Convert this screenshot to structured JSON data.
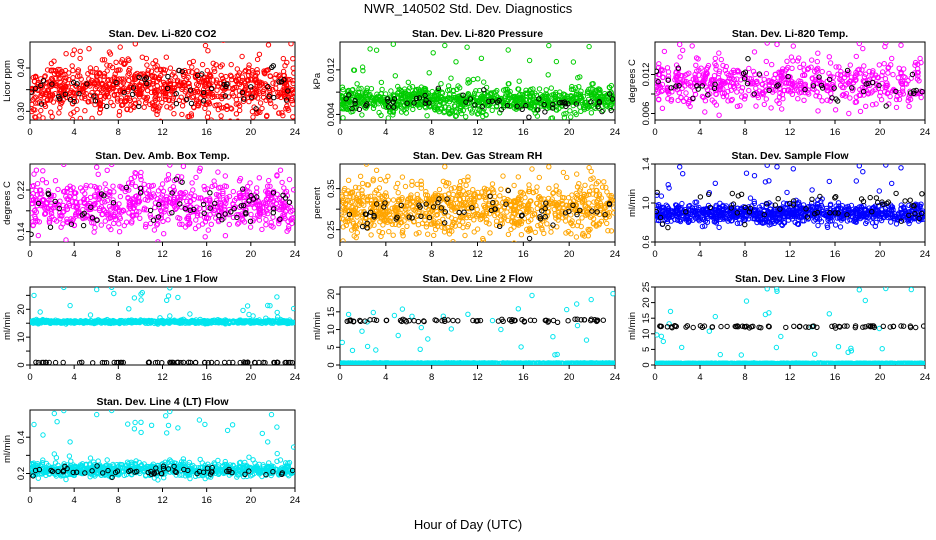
{
  "title": "NWR_140502  Std. Dev. Diagnostics",
  "xlabel": "Hour of Day (UTC)",
  "colors": {
    "red": "#ff0000",
    "green": "#00cc00",
    "magenta": "#ff00ff",
    "orange": "#ffa500",
    "blue": "#0000ff",
    "cyan": "#00e5ee",
    "black": "#000000"
  },
  "chart_data": [
    {
      "type": "scatter",
      "title": "Stan. Dev. Li-820 CO2",
      "ylabel": "Licor ppm",
      "xlim": [
        0,
        24
      ],
      "ylim": [
        0.28,
        0.46
      ],
      "xticks": [
        0,
        4,
        8,
        12,
        16,
        20,
        24
      ],
      "yticks": [
        0.3,
        0.35,
        0.4
      ],
      "ytick_labels": [
        "0.30",
        "",
        "0.40"
      ],
      "series": [
        {
          "color": "#ff0000",
          "mean": 0.35,
          "sd": 0.03,
          "count": 900
        },
        {
          "color": "#000000",
          "mean": 0.35,
          "sd": 0.025,
          "count": 60
        }
      ]
    },
    {
      "type": "scatter",
      "title": "Stan. Dev. Li-820 Pressure",
      "ylabel": "kPa",
      "xlim": [
        0,
        24
      ],
      "ylim": [
        0.003,
        0.017
      ],
      "xticks": [
        0,
        4,
        8,
        12,
        16,
        20,
        24
      ],
      "yticks": [
        0.004,
        0.008,
        0.012
      ],
      "ytick_labels": [
        "0.004",
        "",
        "0.012"
      ],
      "series": [
        {
          "color": "#00cc00",
          "mean": 0.0065,
          "sd": 0.0012,
          "count": 900
        },
        {
          "color": "#000000",
          "mean": 0.0062,
          "sd": 0.001,
          "count": 60
        }
      ]
    },
    {
      "type": "scatter",
      "title": "Stan. Dev. Li-820 Temp.",
      "ylabel": "degrees C",
      "xlim": [
        0,
        24
      ],
      "ylim": [
        0.005,
        0.017
      ],
      "xticks": [
        0,
        4,
        8,
        12,
        16,
        20,
        24
      ],
      "yticks": [
        0.006,
        0.009,
        0.012
      ],
      "ytick_labels": [
        "0.006",
        "",
        "0.012"
      ],
      "series": [
        {
          "color": "#ff00ff",
          "mean": 0.0105,
          "sd": 0.0017,
          "count": 600
        },
        {
          "color": "#000000",
          "mean": 0.0103,
          "sd": 0.0013,
          "count": 50
        }
      ]
    },
    {
      "type": "scatter",
      "title": "Stan. Dev. Amb. Box Temp.",
      "ylabel": "degrees C",
      "xlim": [
        0,
        24
      ],
      "ylim": [
        0.12,
        0.27
      ],
      "xticks": [
        0,
        4,
        8,
        12,
        16,
        20,
        24
      ],
      "yticks": [
        0.14,
        0.18,
        0.22
      ],
      "ytick_labels": [
        "0.14",
        "",
        "0.22"
      ],
      "series": [
        {
          "color": "#ff00ff",
          "mean": 0.19,
          "sd": 0.025,
          "count": 700
        },
        {
          "color": "#000000",
          "mean": 0.185,
          "sd": 0.02,
          "count": 60
        }
      ]
    },
    {
      "type": "scatter",
      "title": "Stan. Dev. Gas Stream RH",
      "ylabel": "percent",
      "xlim": [
        0,
        24
      ],
      "ylim": [
        0.22,
        0.41
      ],
      "xticks": [
        0,
        4,
        8,
        12,
        16,
        20,
        24
      ],
      "yticks": [
        0.25,
        0.3,
        0.35
      ],
      "ytick_labels": [
        "0.25",
        "",
        "0.35"
      ],
      "series": [
        {
          "color": "#ffa500",
          "mean": 0.3,
          "sd": 0.03,
          "count": 900
        },
        {
          "color": "#000000",
          "mean": 0.295,
          "sd": 0.02,
          "count": 60
        }
      ]
    },
    {
      "type": "scatter",
      "title": "Stan. Dev. Sample Flow",
      "ylabel": "ml/min",
      "xlim": [
        0,
        24
      ],
      "ylim": [
        0.6,
        1.4
      ],
      "xticks": [
        0,
        4,
        8,
        12,
        16,
        20,
        24
      ],
      "yticks": [
        0.6,
        1.0,
        1.4
      ],
      "ytick_labels": [
        "0.6",
        "1.0",
        "1.4"
      ],
      "series": [
        {
          "color": "#0000ff",
          "mean": 0.89,
          "sd": 0.05,
          "count": 900
        },
        {
          "color": "#000000",
          "mean": 0.98,
          "sd": 0.09,
          "count": 60
        }
      ]
    },
    {
      "type": "scatter",
      "title": "Stan. Dev. Line 1 Flow",
      "ylabel": "ml/min",
      "xlim": [
        0,
        24
      ],
      "ylim": [
        0,
        28
      ],
      "xticks": [
        0,
        4,
        8,
        12,
        16,
        20,
        24
      ],
      "yticks": [
        0,
        5,
        10,
        15,
        20,
        25
      ],
      "ytick_labels": [
        "0",
        "",
        "10",
        "",
        "20",
        ""
      ],
      "series": [
        {
          "color": "#00e5ee",
          "mean": 15.5,
          "sd": 0.3,
          "count": 700
        },
        {
          "color": "#000000",
          "mean": 0.9,
          "sd": 0.05,
          "count": 70
        }
      ]
    },
    {
      "type": "scatter",
      "title": "Stan. Dev. Line 2 Flow",
      "ylabel": "ml/min",
      "xlim": [
        0,
        24
      ],
      "ylim": [
        0,
        22
      ],
      "xticks": [
        0,
        4,
        8,
        12,
        16,
        20,
        24
      ],
      "yticks": [
        0,
        5,
        10,
        15,
        20
      ],
      "ytick_labels": [
        "0",
        "5",
        "10",
        "15",
        "20"
      ],
      "series": [
        {
          "color": "#00e5ee",
          "mean": 0.5,
          "sd": 0.05,
          "count": 700
        },
        {
          "color": "#000000",
          "mean": 12.5,
          "sd": 0.2,
          "count": 70
        }
      ]
    },
    {
      "type": "scatter",
      "title": "Stan. Dev. Line 3 Flow",
      "ylabel": "ml/min",
      "xlim": [
        0,
        24
      ],
      "ylim": [
        0,
        25
      ],
      "xticks": [
        0,
        4,
        8,
        12,
        16,
        20,
        24
      ],
      "yticks": [
        0,
        5,
        10,
        15,
        20,
        25
      ],
      "ytick_labels": [
        "0",
        "5",
        "10",
        "15",
        "20",
        "25"
      ],
      "series": [
        {
          "color": "#00e5ee",
          "mean": 0.5,
          "sd": 0.05,
          "count": 700
        },
        {
          "color": "#000000",
          "mean": 12.3,
          "sd": 0.2,
          "count": 70
        }
      ]
    },
    {
      "type": "scatter",
      "title": "Stan. Dev. Line 4 (LT) Flow",
      "ylabel": "ml/min",
      "xlim": [
        0,
        24
      ],
      "ylim": [
        0.12,
        0.55
      ],
      "xticks": [
        0,
        4,
        8,
        12,
        16,
        20,
        24
      ],
      "yticks": [
        0.2,
        0.3,
        0.4
      ],
      "ytick_labels": [
        "0.2",
        "",
        "0.4"
      ],
      "series": [
        {
          "color": "#00e5ee",
          "mean": 0.22,
          "sd": 0.02,
          "count": 800
        },
        {
          "color": "#000000",
          "mean": 0.21,
          "sd": 0.015,
          "count": 60
        }
      ]
    }
  ]
}
